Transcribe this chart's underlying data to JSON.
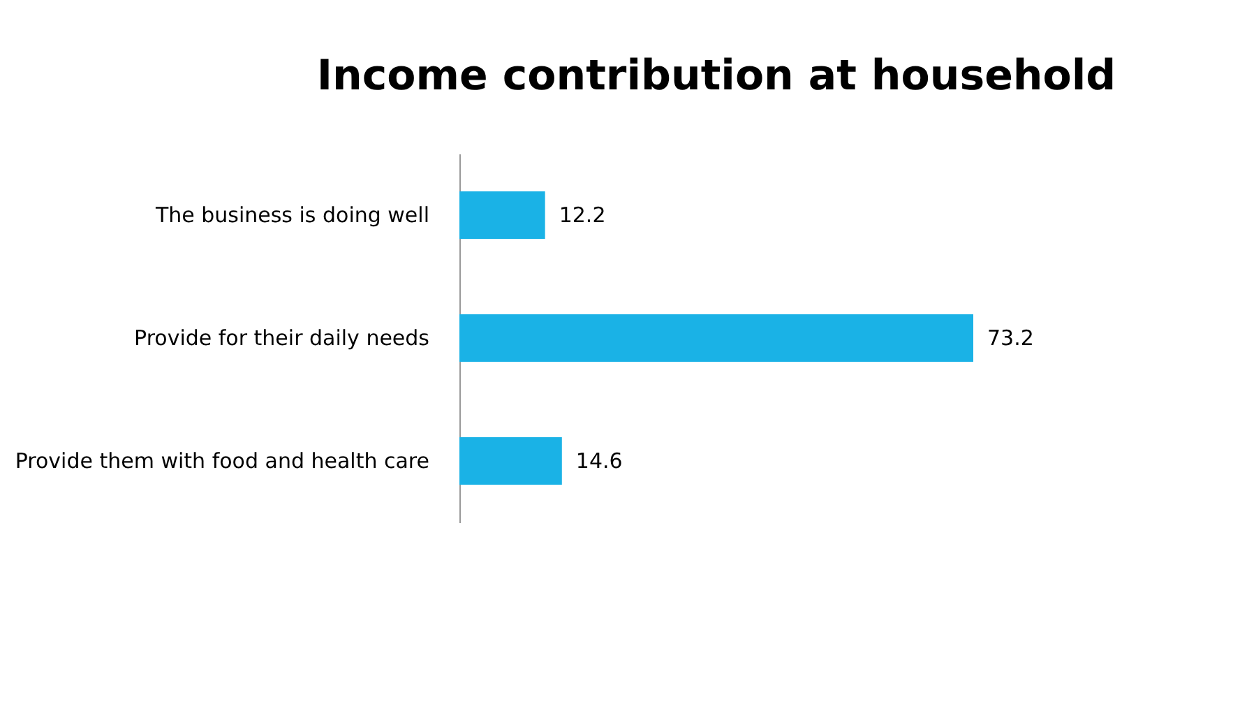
{
  "chart_data": {
    "type": "bar",
    "orientation": "horizontal",
    "title": "Income contribution at household",
    "categories": [
      "The business is doing well",
      "Provide for their daily needs",
      "Provide them with food and health care"
    ],
    "values": [
      12.2,
      73.2,
      14.6
    ],
    "color": "#1ab2e6",
    "data_labels": true,
    "grid": false
  }
}
